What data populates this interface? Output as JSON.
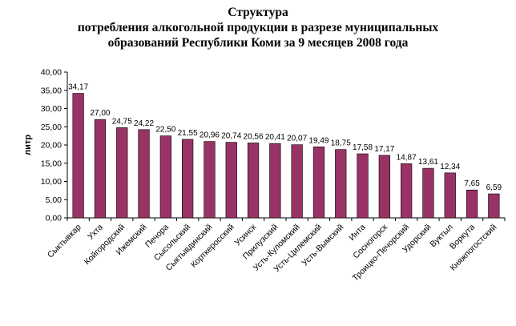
{
  "chart_data": {
    "type": "bar",
    "title_lines": [
      "Структура",
      "потребления алкогольной продукции в разрезе муниципальных",
      "образований Республики Коми за 9 месяцев 2008 года"
    ],
    "xlabel": "",
    "ylabel": "литр",
    "ylim": [
      0,
      40
    ],
    "yticks": [
      "0,00",
      "5,00",
      "10,00",
      "15,00",
      "20,00",
      "25,00",
      "30,00",
      "35,00",
      "40,00"
    ],
    "categories": [
      "Сыктывкар",
      "Ухта",
      "Койгородский",
      "Ижемский",
      "Печора",
      "Сысольский",
      "Сыктывдинский",
      "Корткеросский",
      "Усинск",
      "Прилузский",
      "Усть-Куломский",
      "Усть-Цилемский",
      "Усть-Вымский",
      "Инта",
      "Сосногорск",
      "Троицко-Печорский",
      "Удорский",
      "Вуктыл",
      "Воркута",
      "Княжпогостский"
    ],
    "values": [
      34.17,
      27.0,
      24.75,
      24.22,
      22.5,
      21.55,
      20.96,
      20.74,
      20.56,
      20.41,
      20.07,
      19.49,
      18.75,
      17.58,
      17.17,
      14.87,
      13.61,
      12.34,
      7.65,
      6.59
    ],
    "value_labels": [
      "34,17",
      "27,00",
      "24,75",
      "24,22",
      "22,50",
      "21,55",
      "20,96",
      "20,74",
      "20,56",
      "20,41",
      "20,07",
      "19,49",
      "18,75",
      "17,58",
      "17,17",
      "14,87",
      "13,61",
      "12,34",
      "7,65",
      "6,59"
    ],
    "grid": false,
    "legend": "none",
    "colors": {
      "bar": "#993366",
      "axis": "#000000"
    }
  }
}
